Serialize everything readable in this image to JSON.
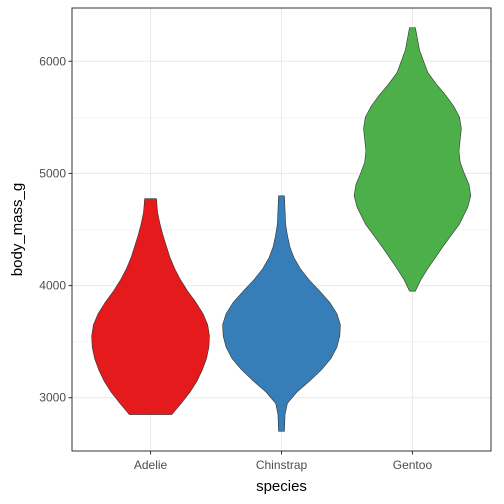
{
  "chart_data": {
    "type": "violin",
    "xlabel": "species",
    "ylabel": "body_mass_g",
    "categories": [
      "Adelie",
      "Chinstrap",
      "Gentoo"
    ],
    "ylim": [
      2525,
      6475
    ],
    "y_ticks": [
      3000,
      4000,
      5000,
      6000
    ],
    "grid": true,
    "series": [
      {
        "category": "Adelie",
        "color": "#E41A1C",
        "min": 2850,
        "max": 4775,
        "density": [
          [
            2850,
            0.36
          ],
          [
            2950,
            0.52
          ],
          [
            3050,
            0.67
          ],
          [
            3150,
            0.79
          ],
          [
            3250,
            0.88
          ],
          [
            3350,
            0.95
          ],
          [
            3450,
            0.99
          ],
          [
            3550,
            1.0
          ],
          [
            3650,
            0.97
          ],
          [
            3750,
            0.89
          ],
          [
            3850,
            0.77
          ],
          [
            3950,
            0.63
          ],
          [
            4050,
            0.51
          ],
          [
            4150,
            0.41
          ],
          [
            4250,
            0.33
          ],
          [
            4350,
            0.27
          ],
          [
            4450,
            0.21
          ],
          [
            4550,
            0.16
          ],
          [
            4650,
            0.12
          ],
          [
            4775,
            0.1
          ]
        ]
      },
      {
        "category": "Chinstrap",
        "color": "#377EB8",
        "min": 2700,
        "max": 4800,
        "density": [
          [
            2700,
            0.05
          ],
          [
            2850,
            0.06
          ],
          [
            2950,
            0.1
          ],
          [
            3050,
            0.26
          ],
          [
            3150,
            0.48
          ],
          [
            3250,
            0.68
          ],
          [
            3350,
            0.84
          ],
          [
            3450,
            0.94
          ],
          [
            3550,
            0.99
          ],
          [
            3650,
            1.0
          ],
          [
            3750,
            0.94
          ],
          [
            3850,
            0.82
          ],
          [
            3950,
            0.65
          ],
          [
            4050,
            0.47
          ],
          [
            4150,
            0.32
          ],
          [
            4250,
            0.21
          ],
          [
            4350,
            0.14
          ],
          [
            4450,
            0.1
          ],
          [
            4550,
            0.07
          ],
          [
            4800,
            0.05
          ]
        ]
      },
      {
        "category": "Gentoo",
        "color": "#4DAF4A",
        "min": 3950,
        "max": 6300,
        "density": [
          [
            3950,
            0.05
          ],
          [
            4050,
            0.14
          ],
          [
            4150,
            0.26
          ],
          [
            4350,
            0.52
          ],
          [
            4550,
            0.8
          ],
          [
            4700,
            0.94
          ],
          [
            4800,
            0.99
          ],
          [
            4900,
            0.96
          ],
          [
            5000,
            0.88
          ],
          [
            5100,
            0.81
          ],
          [
            5200,
            0.79
          ],
          [
            5300,
            0.81
          ],
          [
            5400,
            0.83
          ],
          [
            5500,
            0.8
          ],
          [
            5600,
            0.7
          ],
          [
            5700,
            0.56
          ],
          [
            5800,
            0.4
          ],
          [
            5900,
            0.26
          ],
          [
            6100,
            0.12
          ],
          [
            6300,
            0.05
          ]
        ]
      }
    ]
  }
}
